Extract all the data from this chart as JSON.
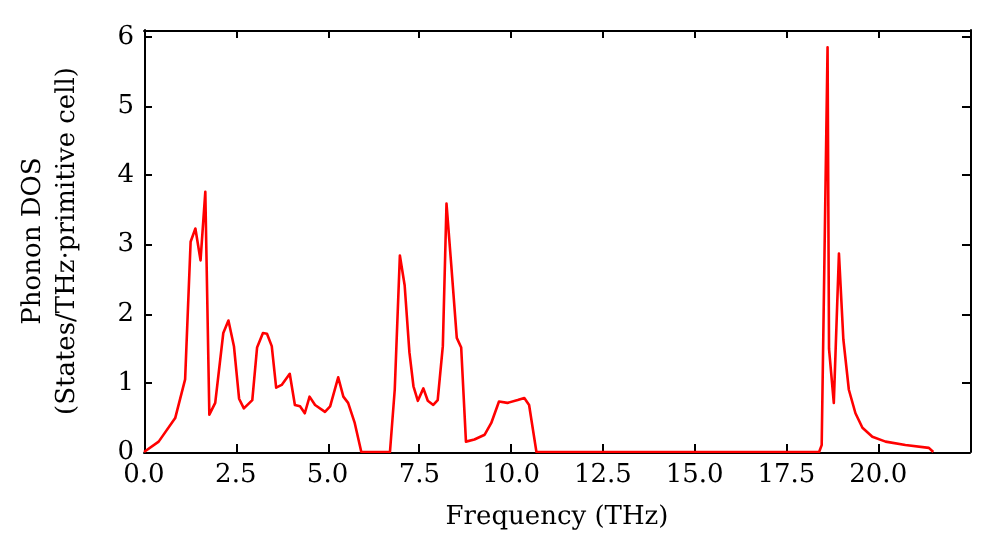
{
  "chart_data": {
    "type": "line",
    "xlabel": "Frequency (THz)",
    "ylabel": "Phonon DOS\n(States/THz·primitive cell)",
    "xlim": [
      0,
      22.5
    ],
    "xticks": [
      {
        "value": 0,
        "label": "0.0"
      },
      {
        "value": 2.5,
        "label": "2.5"
      },
      {
        "value": 5,
        "label": "5.0"
      },
      {
        "value": 7.5,
        "label": "7.5"
      },
      {
        "value": 10,
        "label": "10.0"
      },
      {
        "value": 12.5,
        "label": "12.5"
      },
      {
        "value": 15,
        "label": "15.0"
      },
      {
        "value": 17.5,
        "label": "17.5"
      },
      {
        "value": 20,
        "label": "20.0"
      }
    ],
    "ylim": [
      0,
      6.1
    ],
    "yticks": [
      0,
      1,
      2,
      3,
      4,
      5,
      6
    ],
    "marker": "none",
    "line_style": "solid",
    "series": [
      {
        "color": "#ff0000",
        "x": [
          0,
          0.4,
          0.85,
          1.12,
          1.27,
          1.4,
          1.54,
          1.67,
          1.78,
          1.94,
          2.16,
          2.3,
          2.45,
          2.59,
          2.72,
          2.95,
          3.08,
          3.24,
          3.35,
          3.48,
          3.6,
          3.75,
          3.97,
          4.11,
          4.25,
          4.38,
          4.51,
          4.66,
          4.93,
          5.07,
          5.29,
          5.43,
          5.56,
          5.74,
          5.92,
          6.7,
          6.83,
          6.97,
          7.1,
          7.23,
          7.34,
          7.46,
          7.61,
          7.73,
          7.88,
          8.0,
          8.14,
          8.24,
          8.37,
          8.52,
          8.64,
          8.77,
          9.0,
          9.28,
          9.46,
          9.67,
          9.9,
          10.18,
          10.36,
          10.49,
          10.69,
          18.39,
          18.46,
          18.62,
          18.66,
          18.79,
          18.93,
          19.05,
          19.2,
          19.38,
          19.57,
          19.84,
          20.2,
          20.74,
          21.38,
          21.5
        ],
        "values": [
          0,
          0.15,
          0.49,
          1.05,
          3.04,
          3.23,
          2.77,
          3.76,
          0.54,
          0.71,
          1.72,
          1.9,
          1.53,
          0.77,
          0.63,
          0.75,
          1.51,
          1.72,
          1.71,
          1.53,
          0.93,
          0.97,
          1.13,
          0.68,
          0.66,
          0.56,
          0.8,
          0.68,
          0.58,
          0.66,
          1.08,
          0.8,
          0.71,
          0.42,
          0,
          0,
          0.9,
          2.84,
          2.41,
          1.44,
          0.95,
          0.74,
          0.92,
          0.74,
          0.68,
          0.75,
          1.53,
          3.59,
          2.7,
          1.65,
          1.51,
          0.15,
          0.18,
          0.25,
          0.42,
          0.73,
          0.71,
          0.75,
          0.78,
          0.68,
          0,
          0,
          0.1,
          5.85,
          1.49,
          0.71,
          2.87,
          1.63,
          0.9,
          0.56,
          0.35,
          0.22,
          0.15,
          0.1,
          0.06,
          0
        ]
      }
    ]
  }
}
